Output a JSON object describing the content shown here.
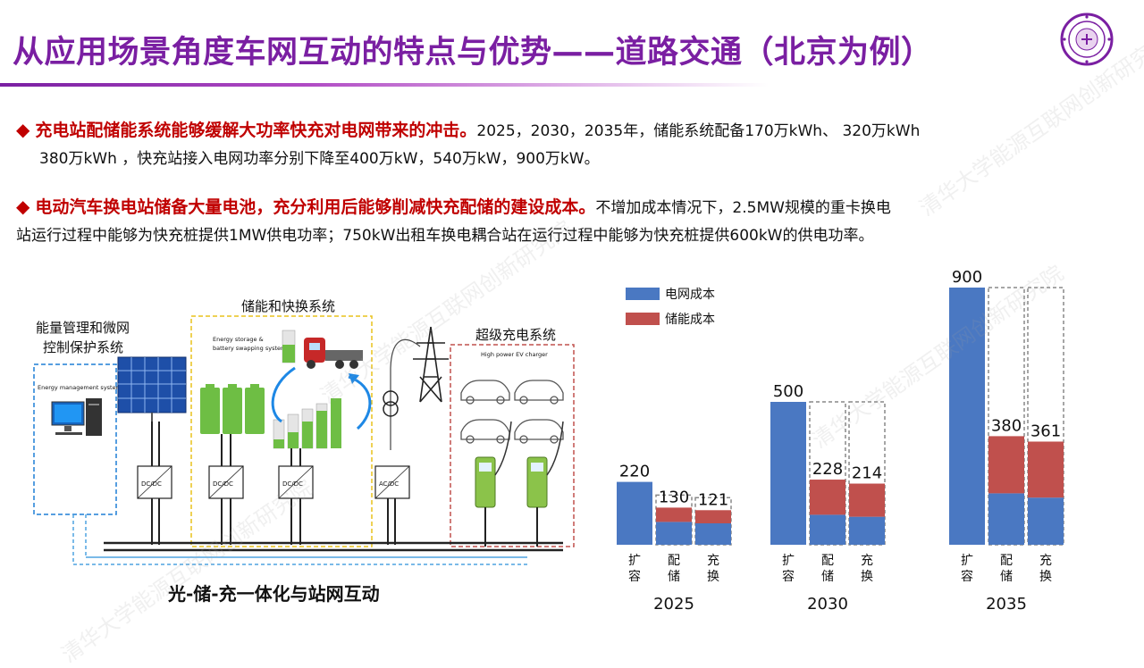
{
  "title": "从应用场景角度车网互动的特点与优势——道路交通（北京为例）",
  "bullets": [
    {
      "highlight": "充电站配储能系统能够缓解大功率快充对电网带来的冲击。",
      "text_line1": "2025，2030，2035年，储能系统配备170万kWh、 320万kWh",
      "text_line2": "380万kWh ，快充站接入电网功率分别下降至400万kW，540万kW，900万kW。"
    },
    {
      "highlight": "电动汽车换电站储备大量电池，充分利用后能够削减快充配储的建设成本。",
      "text_line1": "不增加成本情况下，2.5MW规模的重卡换电",
      "text_line2": "站运行过程中能够为快充桩提供1MW供电功率；750kW出租车换电耦合站在运行过程中能够为快充桩提供600kW的供电功率。"
    }
  ],
  "diagram": {
    "caption": "光-储-充一体化与站网互动",
    "left_label_line1": "能量管理和微网",
    "left_label_line2": "控制保护系统",
    "ems_label": "Energy management system",
    "storage_title": "储能和快换系统",
    "storage_sub_line1": "Energy storage &",
    "storage_sub_line2": "battery swapping  system",
    "charger_title": "超级充电系统",
    "charger_sub": "High power EV charger",
    "converters": [
      "DC/DC",
      "DC/DC",
      "DC/DC",
      "AC/DC"
    ]
  },
  "chart_data": {
    "type": "bar",
    "legend": [
      {
        "name": "电网成本",
        "color": "#4a78c2"
      },
      {
        "name": "储能成本",
        "color": "#c0504d"
      }
    ],
    "category_labels": [
      [
        "扩",
        "容"
      ],
      [
        "配",
        "储"
      ],
      [
        "充",
        "换"
      ]
    ],
    "groups": [
      {
        "year": "2025",
        "bars": [
          {
            "label": "220",
            "total": 220,
            "grid": 220,
            "storage": 0,
            "dashed": false
          },
          {
            "label": "130",
            "total": 130,
            "grid": 80,
            "storage": 50,
            "dashed": true
          },
          {
            "label": "121",
            "total": 121,
            "grid": 75,
            "storage": 46,
            "dashed": true
          }
        ]
      },
      {
        "year": "2030",
        "bars": [
          {
            "label": "500",
            "total": 500,
            "grid": 500,
            "storage": 0,
            "dashed": false
          },
          {
            "label": "228",
            "total": 228,
            "grid": 105,
            "storage": 123,
            "dashed": true
          },
          {
            "label": "214",
            "total": 214,
            "grid": 98,
            "storage": 116,
            "dashed": true
          }
        ]
      },
      {
        "year": "2035",
        "bars": [
          {
            "label": "900",
            "total": 900,
            "grid": 900,
            "storage": 0,
            "dashed": false
          },
          {
            "label": "380",
            "total": 380,
            "grid": 180,
            "storage": 200,
            "dashed": true
          },
          {
            "label": "361",
            "total": 361,
            "grid": 165,
            "storage": 196,
            "dashed": true
          }
        ]
      }
    ],
    "colors": {
      "grid": "#4a78c2",
      "storage": "#c0504d",
      "dash": "#888888"
    }
  },
  "watermark": "清华大学能源互联网创新研究院"
}
